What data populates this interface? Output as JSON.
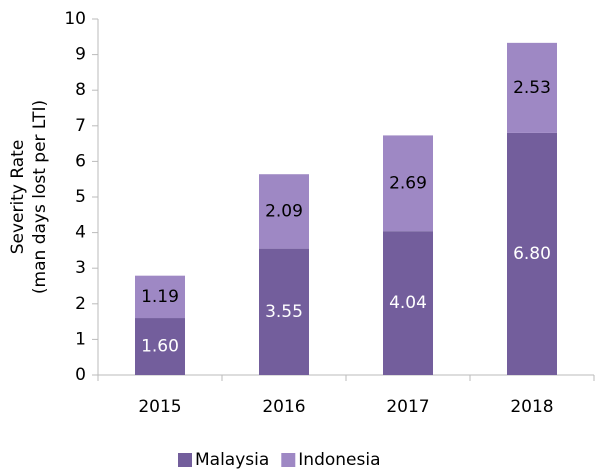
{
  "chart_data": {
    "type": "stacked_bar",
    "ylabel": [
      "Severity Rate",
      "(man days lost per LTI)"
    ],
    "categories": [
      "2015",
      "2016",
      "2017",
      "2018"
    ],
    "series": [
      {
        "name": "Malaysia",
        "color": "#735e9c",
        "values": [
          1.6,
          3.55,
          4.04,
          6.8
        ],
        "value_labels": [
          "1.60",
          "3.55",
          "4.04",
          "6.80"
        ]
      },
      {
        "name": "Indonesia",
        "color": "#9e88c4",
        "values": [
          1.19,
          2.09,
          2.69,
          2.53
        ],
        "value_labels": [
          "1.19",
          "2.09",
          "2.69",
          "2.53"
        ]
      }
    ],
    "ylim": [
      0,
      10
    ],
    "yticks": [
      0,
      1,
      2,
      3,
      4,
      5,
      6,
      7,
      8,
      9,
      10
    ],
    "legend": "bottom"
  }
}
